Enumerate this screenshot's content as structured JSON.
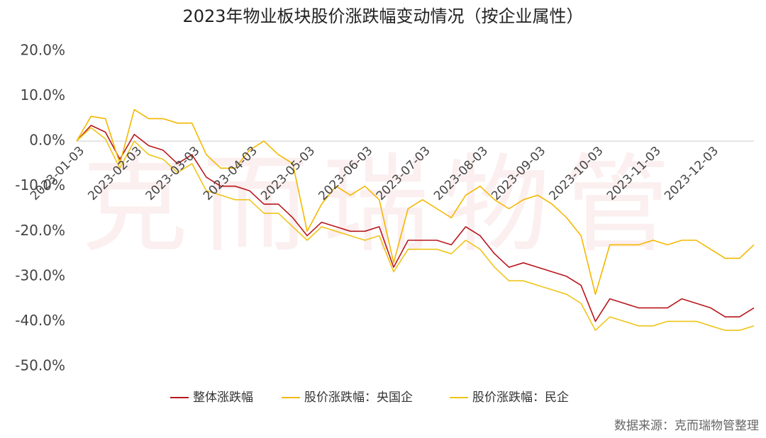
{
  "chart_data": {
    "type": "line",
    "title": "2023年物业板块股价涨跌幅变动情况（按企业属性）",
    "watermark": "克而瑞物管",
    "source": "数据来源：克而瑞物管整理",
    "categories": [
      "2023-01-03",
      null,
      null,
      null,
      "2023-02-03",
      null,
      null,
      null,
      "2023-03-03",
      null,
      null,
      null,
      "2023-04-03",
      null,
      null,
      null,
      "2023-05-03",
      null,
      null,
      null,
      "2023-06-03",
      null,
      null,
      null,
      "2023-07-03",
      null,
      null,
      null,
      "2023-08-03",
      null,
      null,
      null,
      "2023-09-03",
      null,
      null,
      null,
      "2023-10-03",
      null,
      null,
      null,
      "2023-11-03",
      null,
      null,
      null,
      "2023-12-03",
      null,
      null,
      null
    ],
    "ylim": [
      -50,
      20
    ],
    "yticks": [
      {
        "value": 20,
        "label": "20.0%"
      },
      {
        "value": 10,
        "label": "10.0%"
      },
      {
        "value": 0,
        "label": "0.0%"
      },
      {
        "value": -10,
        "label": "-10.0%"
      },
      {
        "value": -20,
        "label": "-20.0%"
      },
      {
        "value": -30,
        "label": "-30.0%"
      },
      {
        "value": -40,
        "label": "-40.0%"
      },
      {
        "value": -50,
        "label": "-50.0%"
      }
    ],
    "grid": false,
    "legend": "bottom",
    "series": [
      {
        "name": "整体涨跌幅",
        "color": "#b8161c",
        "values": [
          0,
          3.5,
          2,
          -4,
          1.5,
          -1,
          -2,
          -5,
          -3,
          -8,
          -10,
          -10,
          -11,
          -14,
          -14,
          -17,
          -21,
          -18,
          -19,
          -20,
          -20,
          -19,
          -28,
          -22,
          -22,
          -22,
          -23,
          -19,
          -21,
          -25,
          -28,
          -27,
          -28,
          -29,
          -30,
          -32,
          -40,
          -35,
          -36,
          -37,
          -37,
          -37,
          -35,
          -36,
          -37,
          -39,
          -39,
          -37
        ]
      },
      {
        "name": "股价涨跌幅：央国企",
        "color": "#f5b700",
        "values": [
          0,
          5.5,
          5,
          -5,
          7,
          5,
          5,
          4,
          4,
          -3,
          -6,
          -6,
          -2,
          0,
          -3,
          -5,
          -20,
          -14,
          -10,
          -12,
          -10,
          -13,
          -27,
          -15,
          -13,
          -15,
          -17,
          -12,
          -10,
          -13,
          -15,
          -13,
          -12,
          -14,
          -17,
          -21,
          -34,
          -23,
          -23,
          -23,
          -22,
          -23,
          -22,
          -22,
          -24,
          -26,
          -26,
          -23
        ]
      },
      {
        "name": "股价涨跌幅：民企",
        "color": "#f0c419",
        "values": [
          0,
          3,
          0.5,
          -6,
          0,
          -3,
          -4,
          -7,
          -5,
          -11,
          -12,
          -13,
          -13,
          -16,
          -16,
          -19,
          -22,
          -19,
          -20,
          -21,
          -22,
          -21,
          -29,
          -24,
          -24,
          -24,
          -25,
          -22,
          -24,
          -28,
          -31,
          -31,
          -32,
          -33,
          -34,
          -36,
          -42,
          -39,
          -40,
          -41,
          -41,
          -40,
          -40,
          -40,
          -41,
          -42,
          -42,
          -41
        ]
      }
    ]
  }
}
